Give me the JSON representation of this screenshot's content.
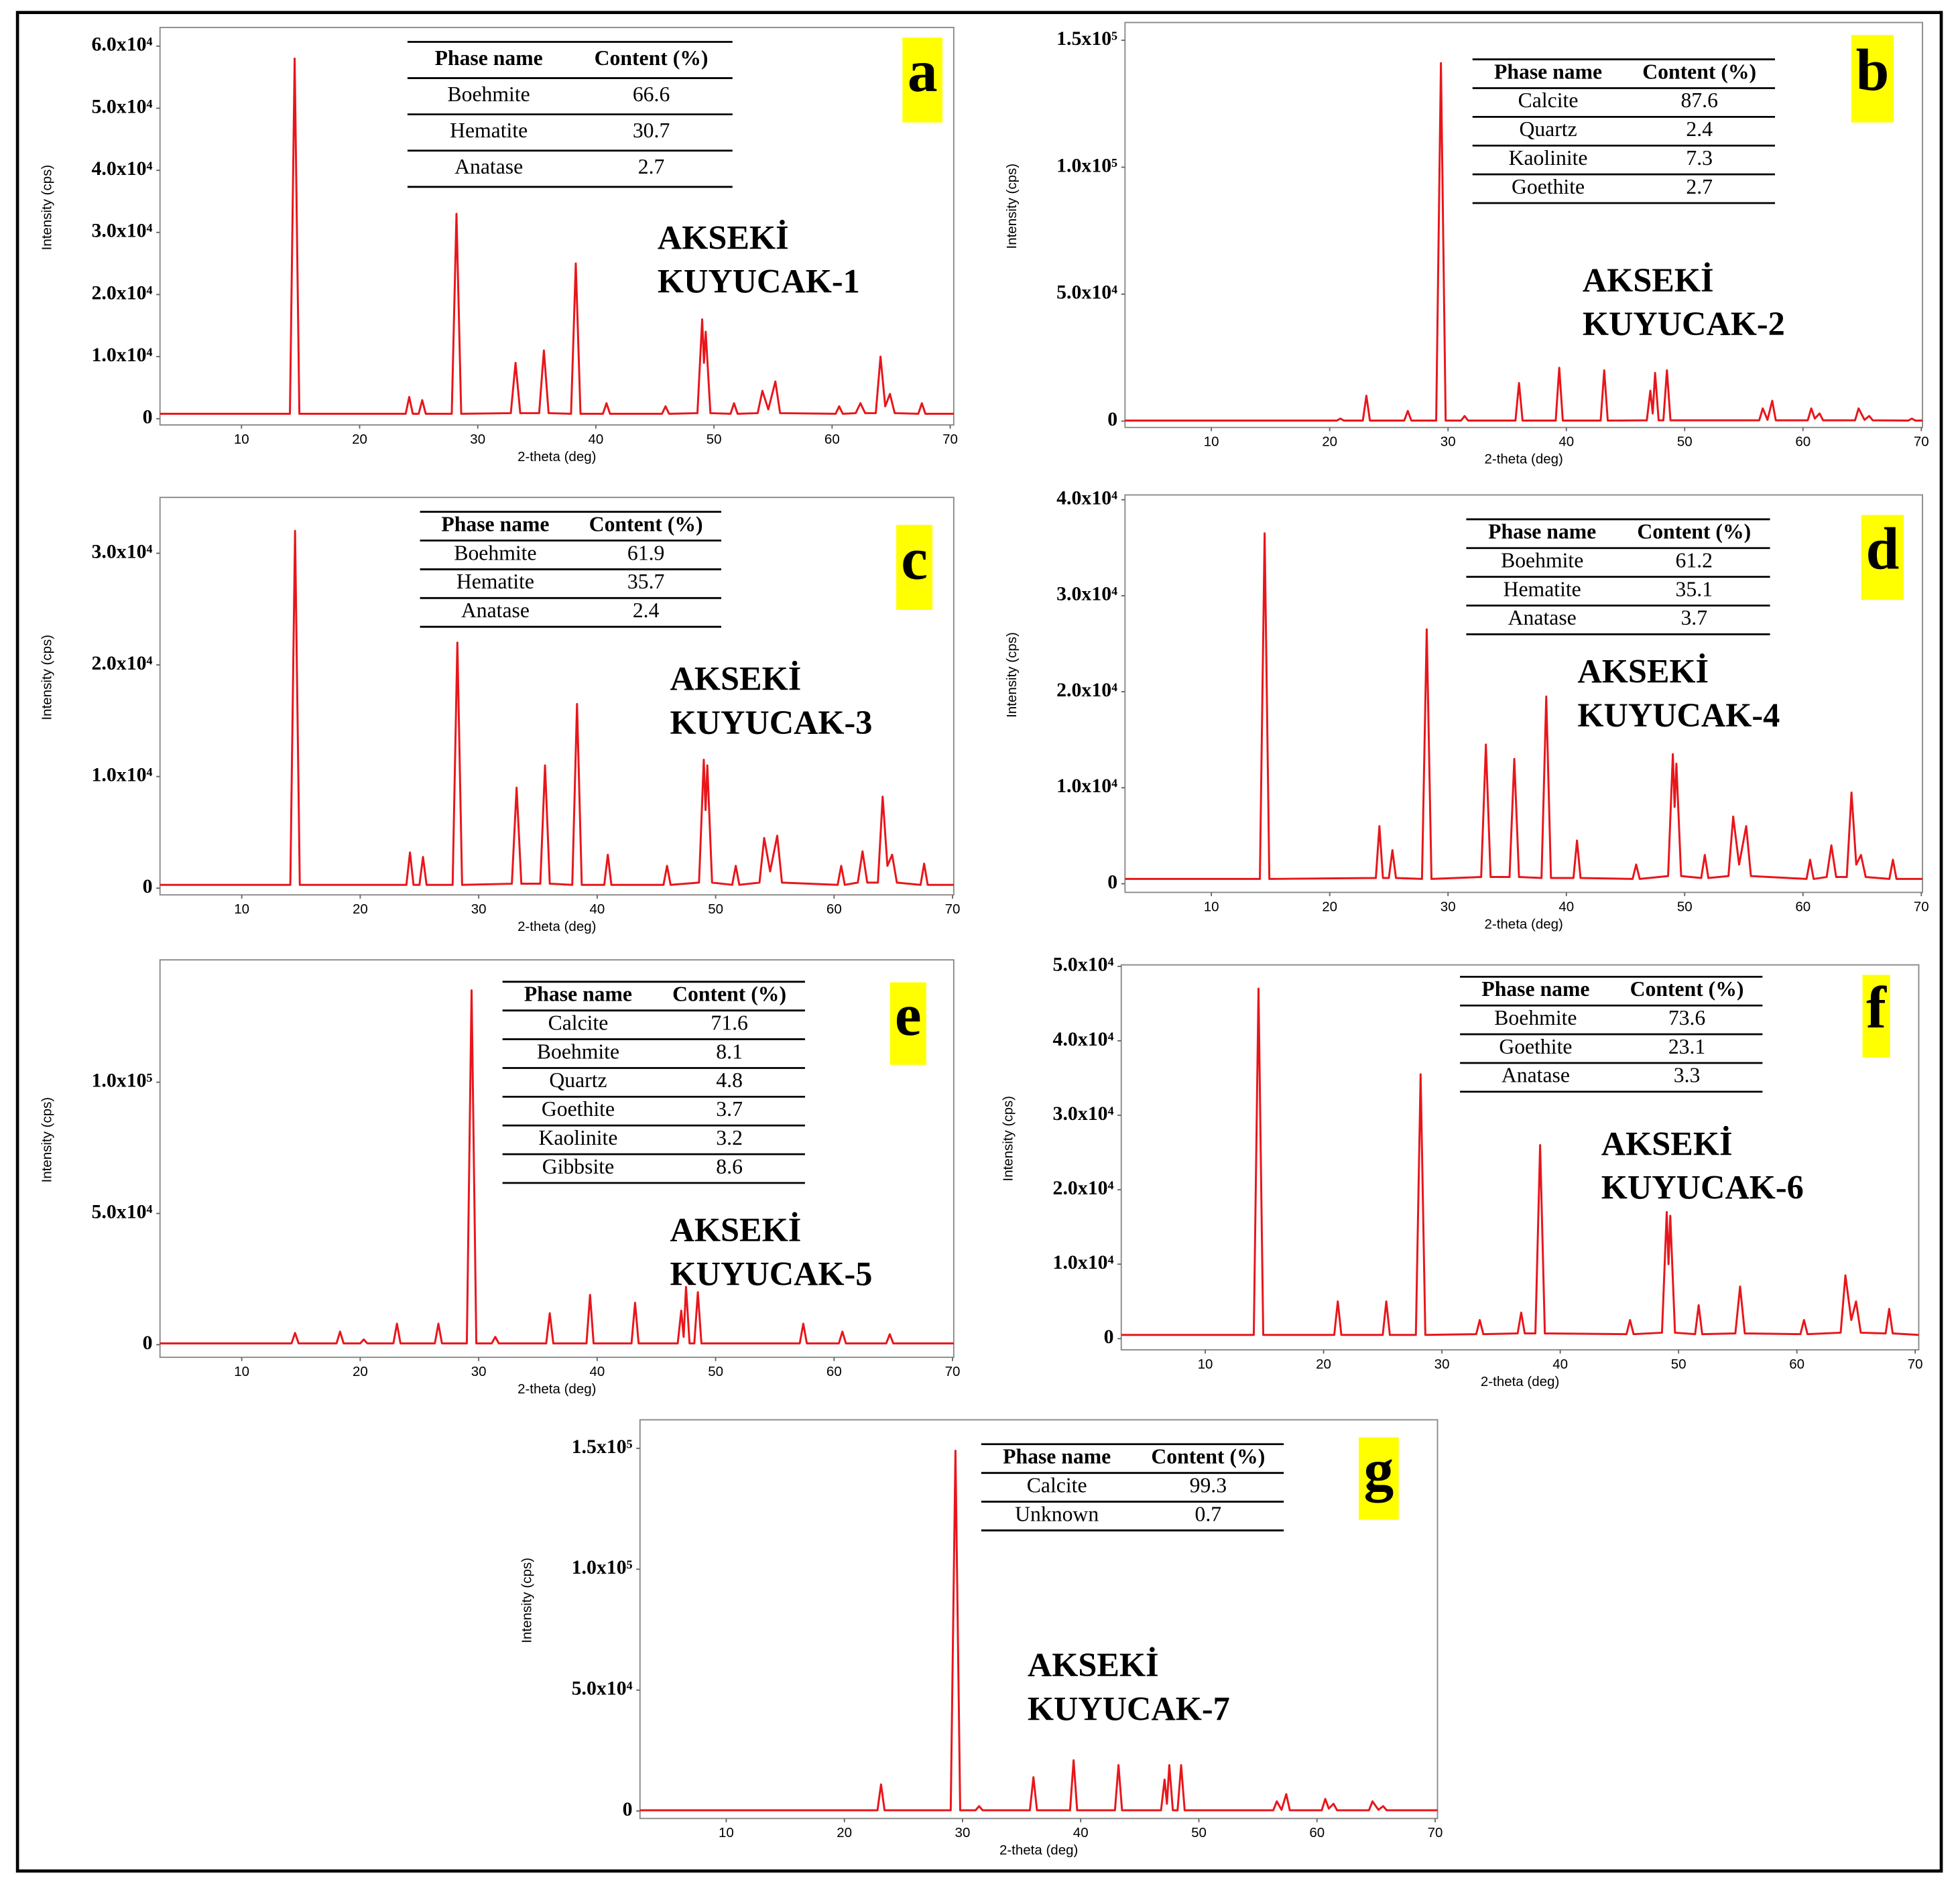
{
  "chart_data": [
    {
      "type": "line",
      "panel_label": "a",
      "sample_label": [
        "AKSEKİ",
        "KUYUCAK-1"
      ],
      "xlabel": "2-theta (deg)",
      "ylabel": "Intensity (cps)",
      "color": "#e8161b",
      "table": {
        "columns": [
          "Phase name",
          "Content (%)"
        ],
        "rows": [
          [
            "Boehmite",
            66.6
          ],
          [
            "Hematite",
            30.7
          ],
          [
            "Anatase",
            2.7
          ]
        ]
      },
      "xlim": [
        3.1,
        70.3
      ],
      "ylim": [
        -1000,
        63000
      ],
      "xticks": [
        10,
        20,
        30,
        40,
        50,
        60,
        70
      ],
      "yticks": [
        0,
        {
          "value": 10000,
          "label": "1.0x10⁴"
        },
        {
          "value": 20000,
          "label": "2.0x10⁴"
        },
        {
          "value": 30000,
          "label": "3.0x10⁴"
        },
        {
          "value": 40000,
          "label": "4.0x10⁴"
        },
        {
          "value": 50000,
          "label": "5.0x10⁴"
        },
        {
          "value": 60000,
          "label": "6.0x10⁴"
        }
      ],
      "x": [
        3.1,
        14.1,
        14.5,
        14.9,
        23.9,
        24.2,
        24.5,
        25.0,
        25.3,
        25.6,
        27.8,
        28.2,
        28.6,
        32.8,
        33.2,
        33.6,
        35.2,
        35.6,
        36.0,
        37.9,
        38.3,
        38.7,
        40.6,
        40.9,
        41.2,
        45.6,
        45.9,
        46.2,
        48.6,
        49.0,
        49.15,
        49.3,
        49.7,
        51.4,
        51.7,
        52.0,
        53.7,
        54.1,
        54.6,
        55.2,
        55.6,
        60.3,
        60.6,
        60.9,
        62.0,
        62.4,
        62.8,
        63.7,
        64.1,
        64.5,
        64.9,
        65.3,
        67.3,
        67.6,
        67.9,
        70.3
      ],
      "values": [
        800,
        800,
        58000,
        800,
        800,
        3500,
        800,
        800,
        3000,
        800,
        800,
        33000,
        800,
        900,
        9000,
        900,
        900,
        11000,
        900,
        800,
        25000,
        800,
        800,
        2500,
        800,
        800,
        2000,
        800,
        900,
        16000,
        9000,
        14000,
        900,
        800,
        2500,
        800,
        900,
        4500,
        1500,
        6000,
        900,
        800,
        2000,
        800,
        900,
        2500,
        900,
        900,
        10000,
        2000,
        4000,
        900,
        800,
        2500,
        800,
        800
      ]
    },
    {
      "type": "line",
      "panel_label": "b",
      "sample_label": [
        "AKSEKİ",
        "KUYUCAK-2"
      ],
      "xlabel": "2-theta (deg)",
      "ylabel": "Intensity (cps)",
      "color": "#e8161b",
      "table": {
        "columns": [
          "Phase name",
          "Content (%)"
        ],
        "rows": [
          [
            "Calcite",
            87.6
          ],
          [
            "Quartz",
            2.4
          ],
          [
            "Kaolinite",
            7.3
          ],
          [
            "Goethite",
            2.7
          ]
        ]
      },
      "xlim": [
        2.7,
        70.1
      ],
      "ylim": [
        -2500,
        157000
      ],
      "xticks": [
        10,
        20,
        30,
        40,
        50,
        60,
        70
      ],
      "yticks": [
        0,
        {
          "value": 50000,
          "label": "5.0x10⁴"
        },
        {
          "value": 100000,
          "label": "1.0x10⁵"
        },
        {
          "value": 150000,
          "label": "1.5x10⁵"
        }
      ],
      "x": [
        2.7,
        20.6,
        20.9,
        21.2,
        22.8,
        23.1,
        23.4,
        26.3,
        26.6,
        26.9,
        29.0,
        29.4,
        29.8,
        31.1,
        31.4,
        31.7,
        35.7,
        36.0,
        36.3,
        39.1,
        39.4,
        39.7,
        42.9,
        43.2,
        43.5,
        46.8,
        47.1,
        47.3,
        47.5,
        47.8,
        48.2,
        48.5,
        48.8,
        56.3,
        56.6,
        57.0,
        57.4,
        57.7,
        60.4,
        60.7,
        61.0,
        61.4,
        61.7,
        64.4,
        64.7,
        65.2,
        65.6,
        65.9,
        68.9,
        69.2,
        69.5,
        70.1
      ],
      "values": [
        200,
        200,
        1000,
        200,
        200,
        10000,
        200,
        200,
        4000,
        200,
        200,
        141000,
        200,
        200,
        2000,
        200,
        200,
        15000,
        200,
        200,
        21000,
        200,
        200,
        20000,
        200,
        300,
        12000,
        3000,
        19000,
        300,
        300,
        20000,
        300,
        300,
        5000,
        500,
        8000,
        300,
        300,
        5000,
        1000,
        3000,
        300,
        300,
        5000,
        500,
        2000,
        300,
        200,
        1000,
        200,
        200
      ]
    },
    {
      "type": "line",
      "panel_label": "c",
      "sample_label": [
        "AKSEKİ",
        "KUYUCAK-3"
      ],
      "xlabel": "2-theta (deg)",
      "ylabel": "Intensity (cps)",
      "color": "#e8161b",
      "table": {
        "columns": [
          "Phase name",
          "Content (%)"
        ],
        "rows": [
          [
            "Boehmite",
            61.9
          ],
          [
            "Hematite",
            35.7
          ],
          [
            "Anatase",
            2.4
          ]
        ]
      },
      "xlim": [
        3.1,
        70.1
      ],
      "ylim": [
        -600,
        35000
      ],
      "xticks": [
        10,
        20,
        30,
        40,
        50,
        60,
        70
      ],
      "yticks": [
        0,
        {
          "value": 10000,
          "label": "1.0x10⁴"
        },
        {
          "value": 20000,
          "label": "2.0x10⁴"
        },
        {
          "value": 30000,
          "label": "3.0x10⁴"
        }
      ],
      "x": [
        3.1,
        14.1,
        14.5,
        14.9,
        23.9,
        24.2,
        24.5,
        25.0,
        25.3,
        25.6,
        27.8,
        28.2,
        28.6,
        32.8,
        33.2,
        33.6,
        35.2,
        35.6,
        36.0,
        37.9,
        38.3,
        38.7,
        40.6,
        40.9,
        41.2,
        45.6,
        45.9,
        46.2,
        48.6,
        49.0,
        49.15,
        49.3,
        49.7,
        51.4,
        51.7,
        52.0,
        53.7,
        54.1,
        54.6,
        55.2,
        55.6,
        60.3,
        60.6,
        60.9,
        62.0,
        62.4,
        62.8,
        63.7,
        64.1,
        64.5,
        64.9,
        65.3,
        67.3,
        67.6,
        67.9,
        70.1
      ],
      "values": [
        300,
        300,
        32000,
        300,
        300,
        3200,
        300,
        300,
        2800,
        300,
        300,
        22000,
        300,
        400,
        9000,
        400,
        400,
        11000,
        400,
        300,
        16500,
        300,
        300,
        3000,
        300,
        300,
        2000,
        300,
        500,
        11500,
        7000,
        11000,
        500,
        300,
        2000,
        300,
        500,
        4500,
        1500,
        4700,
        500,
        300,
        2000,
        300,
        500,
        3300,
        500,
        500,
        8200,
        2000,
        3000,
        500,
        300,
        2200,
        300,
        300
      ]
    },
    {
      "type": "line",
      "panel_label": "d",
      "sample_label": [
        "AKSEKİ",
        "KUYUCAK-4"
      ],
      "xlabel": "2-theta (deg)",
      "ylabel": "Intensity (cps)",
      "color": "#e8161b",
      "table": {
        "columns": [
          "Phase name",
          "Content (%)"
        ],
        "rows": [
          [
            "Boehmite",
            61.2
          ],
          [
            "Hematite",
            35.1
          ],
          [
            "Anatase",
            3.7
          ]
        ]
      },
      "xlim": [
        2.7,
        70.1
      ],
      "ylim": [
        -900,
        40500
      ],
      "xticks": [
        10,
        20,
        30,
        40,
        50,
        60,
        70
      ],
      "yticks": [
        0,
        {
          "value": 10000,
          "label": "1.0x10⁴"
        },
        {
          "value": 20000,
          "label": "2.0x10⁴"
        },
        {
          "value": 30000,
          "label": "3.0x10⁴"
        },
        {
          "value": 40000,
          "label": "4.0x10⁴"
        }
      ],
      "x": [
        2.7,
        14.1,
        14.5,
        14.9,
        23.9,
        24.2,
        24.5,
        25.0,
        25.3,
        25.6,
        27.8,
        28.2,
        28.6,
        32.8,
        33.2,
        33.6,
        35.2,
        35.6,
        36.0,
        37.9,
        38.3,
        38.7,
        40.6,
        40.9,
        41.2,
        45.6,
        45.9,
        46.2,
        48.6,
        49.0,
        49.15,
        49.3,
        49.7,
        51.4,
        51.7,
        52.0,
        53.7,
        54.1,
        54.6,
        55.2,
        55.6,
        60.3,
        60.6,
        60.9,
        62.0,
        62.4,
        62.8,
        63.7,
        64.1,
        64.5,
        64.9,
        65.3,
        67.3,
        67.6,
        67.9,
        70.1
      ],
      "values": [
        500,
        500,
        36500,
        500,
        600,
        6000,
        600,
        600,
        3500,
        600,
        500,
        26500,
        500,
        700,
        14500,
        700,
        700,
        13000,
        700,
        600,
        19500,
        600,
        600,
        4500,
        600,
        500,
        2000,
        500,
        800,
        13500,
        8000,
        12500,
        800,
        600,
        3000,
        600,
        800,
        7000,
        2000,
        6000,
        800,
        500,
        2500,
        500,
        700,
        4000,
        700,
        700,
        9500,
        2000,
        3000,
        700,
        500,
        2500,
        500,
        500
      ]
    },
    {
      "type": "line",
      "panel_label": "e",
      "sample_label": [
        "AKSEKİ",
        "KUYUCAK-5"
      ],
      "xlabel": "2-theta (deg)",
      "ylabel": "Intensity (cps)",
      "color": "#e8161b",
      "table": {
        "columns": [
          "Phase name",
          "Content (%)"
        ],
        "rows": [
          [
            "Calcite",
            71.6
          ],
          [
            "Boehmite",
            8.1
          ],
          [
            "Quartz",
            4.8
          ],
          [
            "Goethite",
            3.7
          ],
          [
            "Kaolinite",
            3.2
          ],
          [
            "Gibbsite",
            8.6
          ]
        ]
      },
      "xlim": [
        3.1,
        70.1
      ],
      "ylim": [
        -4800,
        146600
      ],
      "xticks": [
        10,
        20,
        30,
        40,
        50,
        60,
        70
      ],
      "yticks": [
        0,
        {
          "value": 50000,
          "label": "5.0x10⁴"
        },
        {
          "value": 100000,
          "label": "1.0x10⁵"
        }
      ],
      "x": [
        3.1,
        14.2,
        14.5,
        14.8,
        18.0,
        18.3,
        18.6,
        20.0,
        20.3,
        20.6,
        22.8,
        23.1,
        23.4,
        26.3,
        26.6,
        26.9,
        29.0,
        29.4,
        29.8,
        31.1,
        31.4,
        31.7,
        35.7,
        36.0,
        36.3,
        39.1,
        39.4,
        39.7,
        42.9,
        43.2,
        43.5,
        46.8,
        47.1,
        47.3,
        47.5,
        47.8,
        48.2,
        48.5,
        48.8,
        57.1,
        57.4,
        57.7,
        60.4,
        60.7,
        61.0,
        64.4,
        64.7,
        65.0,
        70.1
      ],
      "values": [
        500,
        500,
        4500,
        500,
        500,
        5000,
        500,
        500,
        2000,
        500,
        500,
        8000,
        500,
        500,
        8000,
        500,
        500,
        135000,
        500,
        500,
        3000,
        500,
        500,
        12000,
        500,
        500,
        19000,
        500,
        500,
        16000,
        500,
        500,
        13000,
        3000,
        22000,
        500,
        500,
        20000,
        500,
        500,
        8000,
        500,
        500,
        5000,
        500,
        500,
        4000,
        500,
        500
      ]
    },
    {
      "type": "line",
      "panel_label": "f",
      "sample_label": [
        "AKSEKİ",
        "KUYUCAK-6"
      ],
      "xlabel": "2-theta (deg)",
      "ylabel": "Intensity (cps)",
      "color": "#e8161b",
      "table": {
        "columns": [
          "Phase name",
          "Content (%)"
        ],
        "rows": [
          [
            "Boehmite",
            73.6
          ],
          [
            "Goethite",
            23.1
          ],
          [
            "Anatase",
            3.3
          ]
        ]
      },
      "xlim": [
        2.9,
        70.3
      ],
      "ylim": [
        -1500,
        50200
      ],
      "xticks": [
        10,
        20,
        30,
        40,
        50,
        60,
        70
      ],
      "yticks": [
        0,
        {
          "value": 10000,
          "label": "1.0x10⁴"
        },
        {
          "value": 20000,
          "label": "2.0x10⁴"
        },
        {
          "value": 30000,
          "label": "3.0x10⁴"
        },
        {
          "value": 40000,
          "label": "4.0x10⁴"
        },
        {
          "value": 50000,
          "label": "5.0x10⁴"
        }
      ],
      "x": [
        2.9,
        14.1,
        14.5,
        14.9,
        20.9,
        21.2,
        21.5,
        25.0,
        25.3,
        25.6,
        27.8,
        28.2,
        28.6,
        32.9,
        33.2,
        33.5,
        36.4,
        36.7,
        37.0,
        37.9,
        38.3,
        38.7,
        45.6,
        45.9,
        46.2,
        48.6,
        49.0,
        49.15,
        49.3,
        49.7,
        51.4,
        51.7,
        52.0,
        54.8,
        55.2,
        55.6,
        60.3,
        60.6,
        60.9,
        63.7,
        64.1,
        64.6,
        65.0,
        65.4,
        67.5,
        67.8,
        68.1,
        70.3
      ],
      "values": [
        500,
        500,
        47000,
        500,
        500,
        5000,
        500,
        500,
        5000,
        500,
        500,
        35500,
        500,
        600,
        2500,
        600,
        700,
        3500,
        700,
        700,
        26000,
        700,
        600,
        2500,
        600,
        800,
        17000,
        10000,
        16500,
        800,
        600,
        4500,
        600,
        700,
        7000,
        700,
        600,
        2500,
        600,
        800,
        8500,
        2500,
        5000,
        800,
        700,
        4000,
        700,
        500
      ]
    },
    {
      "type": "line",
      "panel_label": "g",
      "sample_label": [
        "AKSEKİ",
        "KUYUCAK-7"
      ],
      "xlabel": "2-theta (deg)",
      "ylabel": "Intensity (cps)",
      "color": "#e8161b",
      "table": {
        "columns": [
          "Phase name",
          "Content (%)"
        ],
        "rows": [
          [
            "Calcite",
            99.3
          ],
          [
            "Unknown",
            0.7
          ]
        ]
      },
      "xlim": [
        2.7,
        70.2
      ],
      "ylim": [
        -3100,
        161800
      ],
      "xticks": [
        10,
        20,
        30,
        40,
        50,
        60,
        70
      ],
      "yticks": [
        0,
        {
          "value": 50000,
          "label": "5.0x10⁴"
        },
        {
          "value": 100000,
          "label": "1.0x10⁵"
        },
        {
          "value": 150000,
          "label": "1.5x10⁵"
        }
      ],
      "x": [
        2.7,
        22.8,
        23.1,
        23.4,
        29.0,
        29.4,
        29.8,
        31.1,
        31.4,
        31.7,
        35.7,
        36.0,
        36.3,
        39.1,
        39.4,
        39.7,
        42.9,
        43.2,
        43.5,
        46.8,
        47.1,
        47.3,
        47.5,
        47.8,
        48.2,
        48.5,
        48.8,
        56.3,
        56.6,
        57.0,
        57.4,
        57.7,
        60.4,
        60.7,
        61.0,
        61.4,
        61.7,
        64.4,
        64.7,
        65.2,
        65.6,
        65.9,
        70.2
      ],
      "values": [
        300,
        300,
        11000,
        300,
        300,
        149000,
        300,
        300,
        2000,
        300,
        300,
        14000,
        300,
        300,
        21000,
        300,
        300,
        19000,
        300,
        300,
        13000,
        3000,
        19000,
        300,
        300,
        19000,
        300,
        300,
        4000,
        500,
        7000,
        300,
        300,
        5000,
        1000,
        3000,
        300,
        300,
        4000,
        500,
        2000,
        300,
        300
      ]
    }
  ]
}
